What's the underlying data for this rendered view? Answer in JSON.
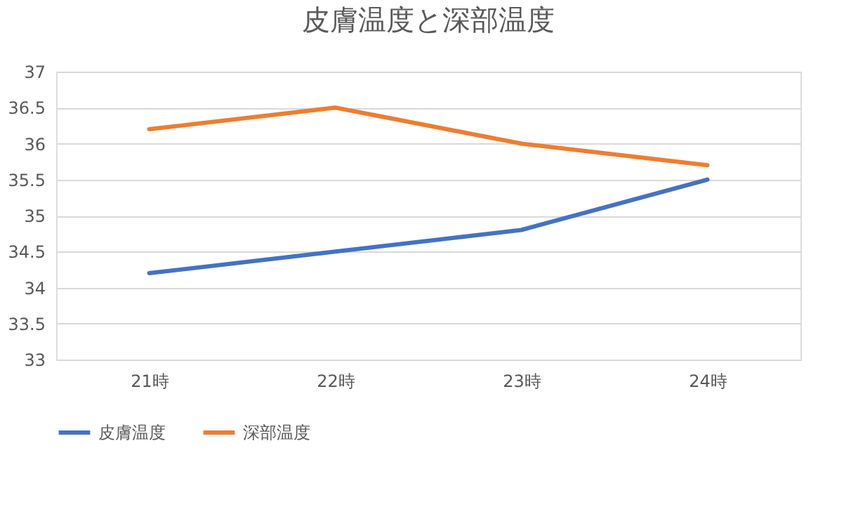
{
  "chart_data": {
    "type": "line",
    "title": "皮膚温度と深部温度",
    "categories": [
      "21時",
      "22時",
      "23時",
      "24時"
    ],
    "series": [
      {
        "name": "皮膚温度",
        "color": "#4472c4",
        "values": [
          34.2,
          34.5,
          34.8,
          35.5
        ]
      },
      {
        "name": "深部温度",
        "color": "#ed7d31",
        "values": [
          36.2,
          36.5,
          36.0,
          35.7
        ]
      }
    ],
    "ylim": [
      33,
      37
    ],
    "yticks": [
      33,
      33.5,
      34,
      34.5,
      35,
      35.5,
      36,
      36.5,
      37
    ],
    "grid": "y",
    "legend": "bottom",
    "line_style": "solid"
  }
}
